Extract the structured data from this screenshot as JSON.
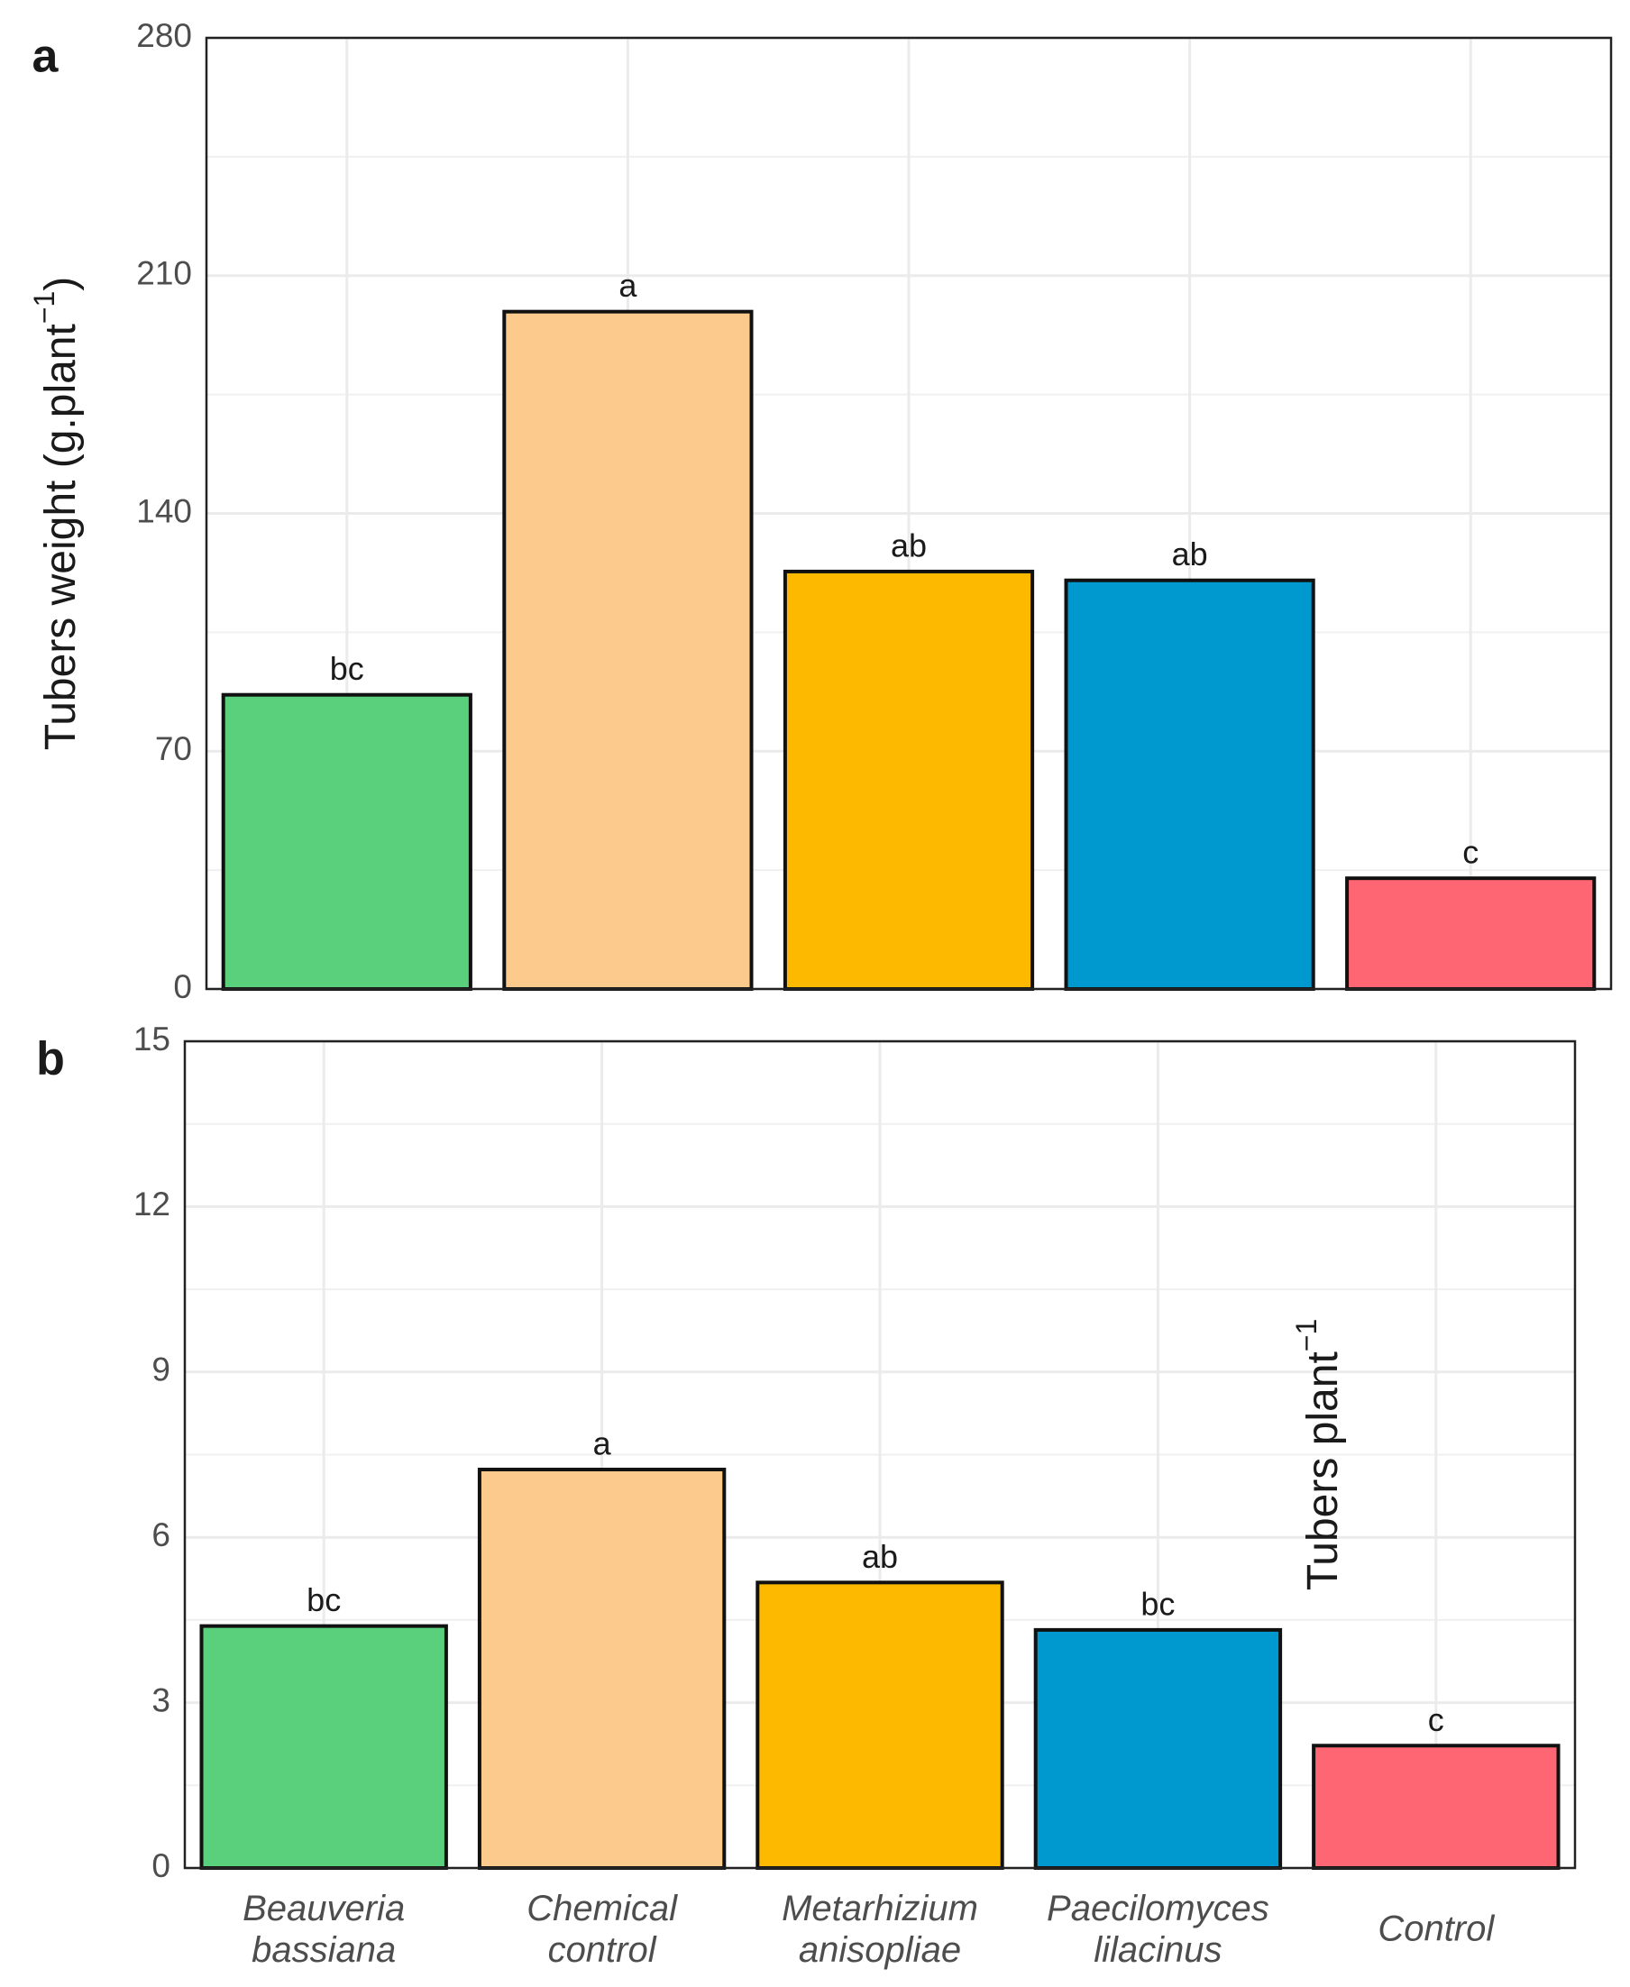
{
  "chart_data": [
    {
      "type": "bar",
      "label": "a",
      "y_label": [
        "Tubers weight (g.plant",
        "−1",
        ")"
      ],
      "values": [
        86.6,
        199.4,
        122.9,
        120.3,
        32.6
      ],
      "value_labels": [
        "bc",
        "a",
        "ab",
        "ab",
        "c"
      ],
      "colors": [
        "#5ad07c",
        "#fdca8e",
        "#fdb800",
        "#0099cf",
        "#ff6673"
      ],
      "ylim": [
        0,
        280
      ],
      "yticks": [
        0,
        70,
        140,
        210,
        280
      ],
      "grid": true
    },
    {
      "type": "bar",
      "label": "b",
      "y_label": [
        "Tubers plant",
        "−1"
      ],
      "categories": [
        "Beauveria bassiana",
        "Chemical control",
        "Metarhizium anisopliae",
        "Paecilomyces lilacinus",
        "Control"
      ],
      "values": [
        4.39,
        7.23,
        5.18,
        4.32,
        2.22
      ],
      "value_labels": [
        "bc",
        "a",
        "ab",
        "bc",
        "c"
      ],
      "colors": [
        "#5ad07c",
        "#fdca8e",
        "#fdb800",
        "#0099cf",
        "#ff6673"
      ],
      "ylim": [
        0,
        15
      ],
      "yticks": [
        0,
        3,
        6,
        9,
        12,
        15
      ],
      "grid": true
    }
  ]
}
